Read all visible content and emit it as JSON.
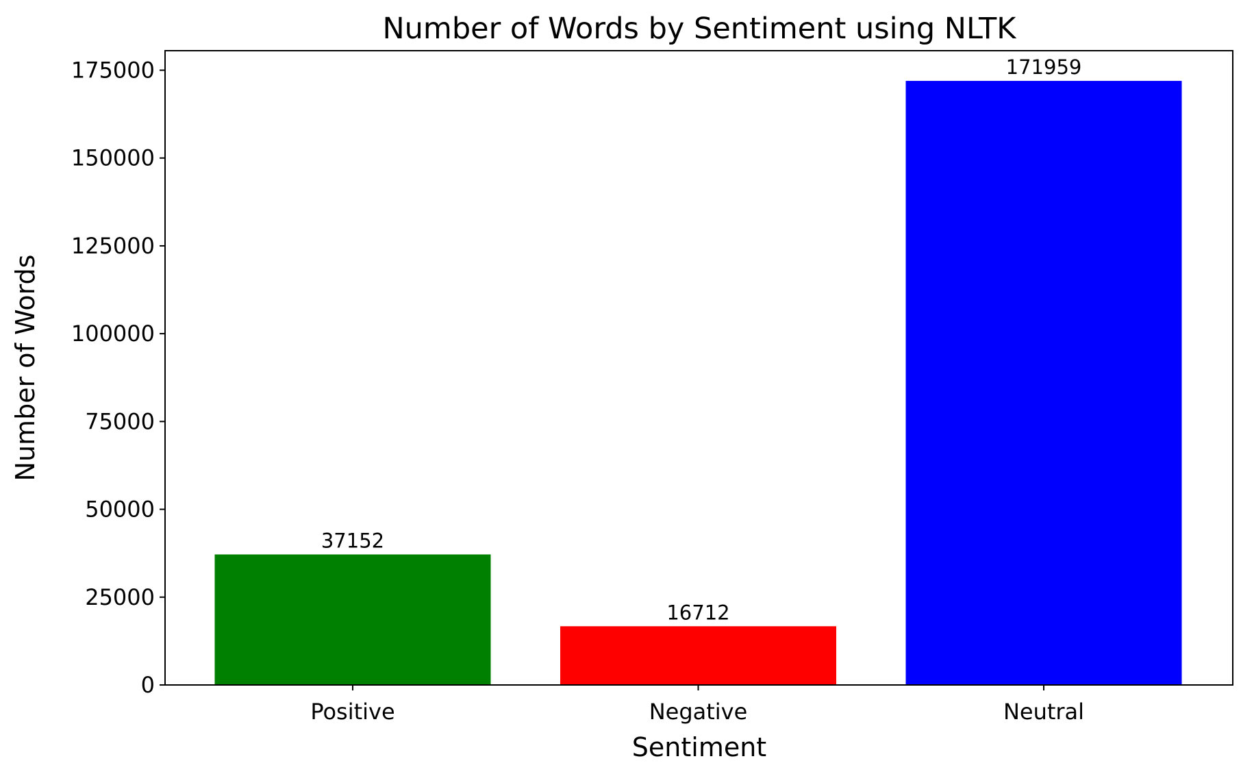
{
  "chart_data": {
    "type": "bar",
    "title": "Number of Words by Sentiment using NLTK",
    "xlabel": "Sentiment",
    "ylabel": "Number of Words",
    "categories": [
      "Positive",
      "Negative",
      "Neutral"
    ],
    "values": [
      37152,
      16712,
      171959
    ],
    "data_labels": [
      "37152",
      "16712",
      "171959"
    ],
    "colors": [
      "#008000",
      "#ff0000",
      "#0000ff"
    ],
    "yticks": [
      0,
      25000,
      50000,
      75000,
      100000,
      125000,
      150000,
      175000
    ],
    "ytick_labels": [
      "0",
      "25000",
      "50000",
      "75000",
      "100000",
      "125000",
      "150000",
      "175000"
    ],
    "ylim": [
      0,
      180557
    ],
    "grid": false,
    "legend": "none"
  }
}
